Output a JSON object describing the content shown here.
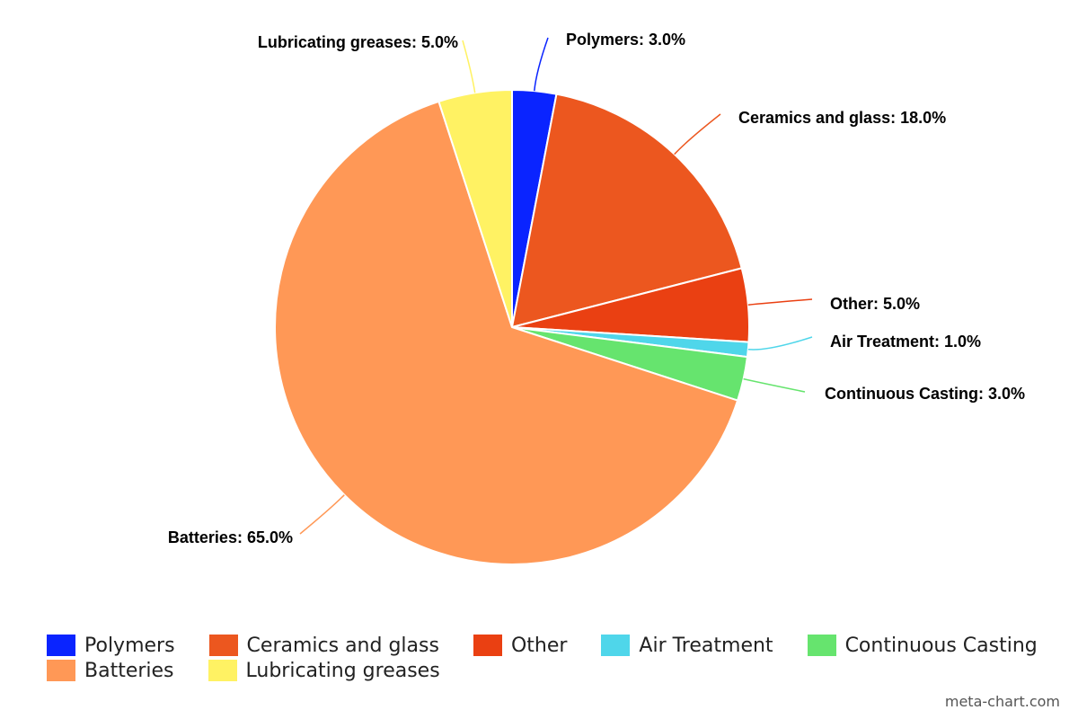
{
  "chart_data": {
    "type": "pie",
    "categories": [
      "Polymers",
      "Ceramics and glass",
      "Other",
      "Air Treatment",
      "Continuous Casting",
      "Batteries",
      "Lubricating greases"
    ],
    "values": [
      3.0,
      18.0,
      5.0,
      1.0,
      3.0,
      65.0,
      5.0
    ],
    "colors": [
      "#0a24ff",
      "#ec571f",
      "#ea4012",
      "#4fd6ea",
      "#66e46e",
      "#ff9856",
      "#fff263"
    ],
    "data_labels": [
      "Polymers: 3.0%",
      "Ceramics and glass: 18.0%",
      "Other: 5.0%",
      "Air Treatment: 1.0%",
      "Continuous Casting: 3.0%",
      "Batteries: 65.0%",
      "Lubricating greases: 5.0%"
    ],
    "start_angle": "12 o'clock",
    "direction": "clockwise",
    "legend_position": "bottom"
  },
  "credit": "meta-chart.com"
}
